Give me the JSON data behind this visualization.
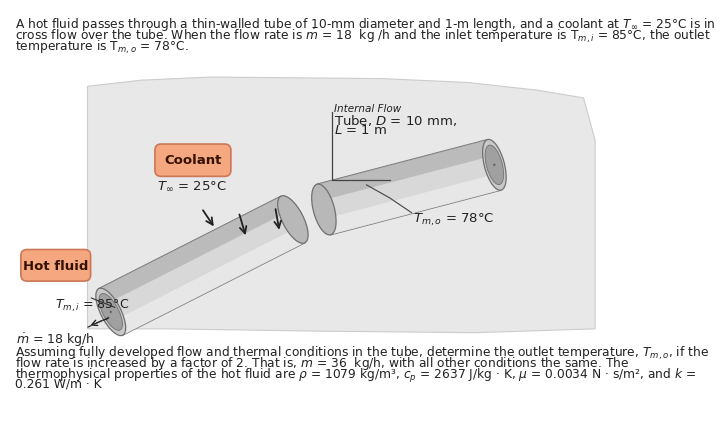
{
  "bg_color": "#ffffff",
  "hill_color": "#e8e8e8",
  "hill_edge": "#cccccc",
  "tube_body": "#d4d4d4",
  "tube_top": "#e8e8e8",
  "tube_bottom": "#a8a8a8",
  "tube_end_face": "#c8c8c8",
  "tube_end_dark": "#909090",
  "tube_edge": "#707070",
  "gap_face_color": "#b0b0b0",
  "text_color": "#222222",
  "arrow_color": "#222222",
  "coolant_box_face": "#f5a880",
  "coolant_box_edge": "#cc7755",
  "hot_box_face": "#f5a880",
  "hot_box_edge": "#cc7755",
  "top_text_line1": "A hot fluid passes through a thin-walled tube of 10-mm diameter and 1-m length, and a coolant at $T_{\\infty}$ = 25°C is in",
  "top_text_line2": "cross flow over the tube. When the flow rate is $\\dot{m}$ = 18  kg /h and the inlet temperature is T$_{m,i}$ = 85°C, the outlet",
  "top_text_line3": "temperature is T$_{m,o}$ = 78°C.",
  "internal_flow": "Internal Flow",
  "tube_label_line1": "Tube, $D$ = 10 mm,",
  "tube_label_line2": "$L$ = 1 m",
  "coolant_label": "Coolant",
  "T_inf": "$T_{\\infty}$ = 25°C",
  "hot_fluid_label": "Hot fluid",
  "T_mi": "$T_{m,i}$ = 85°C",
  "T_mo": "$T_{m,o}$ = 78°C",
  "mdot_label": "$\\dot{m}$ = 18 kg/h",
  "bottom_line1": "Assuming fully developed flow and thermal conditions in the tube, determine the outlet temperature, $T_{m,o}$, if the",
  "bottom_line2": "flow rate is increased by a factor of 2. That is, $\\dot{m}$ = 36  kg/h, with all other conditions the same. The",
  "bottom_line3": "thermophysical properties of the hot fluid are $\\rho$ = 1079 kg/m³, $c_p$ = 2637 J/kg · K, $\\mu$ = 0.0034 N · s/m², and $k$ =",
  "bottom_line4": "0.261 W/m · K"
}
